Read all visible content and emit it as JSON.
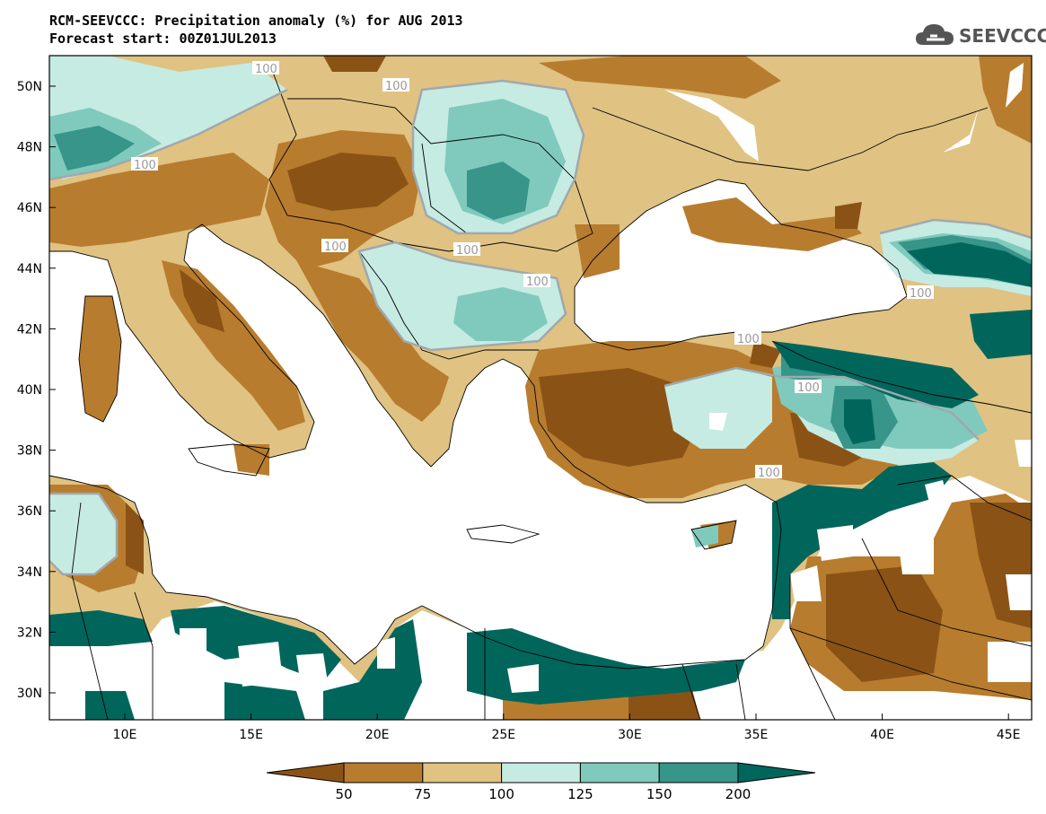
{
  "title": {
    "line1": "RCM-SEEVCCC: Precipitation anomaly (%) for AUG 2013",
    "line2": "Forecast start: 00Z01JUL2013"
  },
  "logo": {
    "text": "SEEVCCC",
    "icon": "cloud-icon"
  },
  "axes": {
    "lat_labels": [
      "50N",
      "48N",
      "46N",
      "44N",
      "42N",
      "40N",
      "38N",
      "36N",
      "34N",
      "32N",
      "30N"
    ],
    "lon_labels": [
      "10E",
      "15E",
      "20E",
      "25E",
      "30E",
      "35E",
      "40E",
      "45E"
    ]
  },
  "contour_labels": [
    "100",
    "100",
    "100",
    "100",
    "100",
    "100",
    "100",
    "100",
    "100",
    "100"
  ],
  "colorbar": {
    "colors": [
      "#8a5315",
      "#b87c2e",
      "#e0c282",
      "#c6ebe2",
      "#7fcabc",
      "#37958a",
      "#00665c"
    ],
    "labels": [
      "50",
      "75",
      "100",
      "125",
      "150",
      "200"
    ]
  },
  "colors": {
    "c1": "#8a5315",
    "c2": "#b87c2e",
    "c3": "#e0c282",
    "c4": "#c6ebe2",
    "c5": "#7fcabc",
    "c6": "#37958a",
    "c7": "#00665c",
    "land_white": "#ffffff",
    "sea": "#ffffff"
  }
}
